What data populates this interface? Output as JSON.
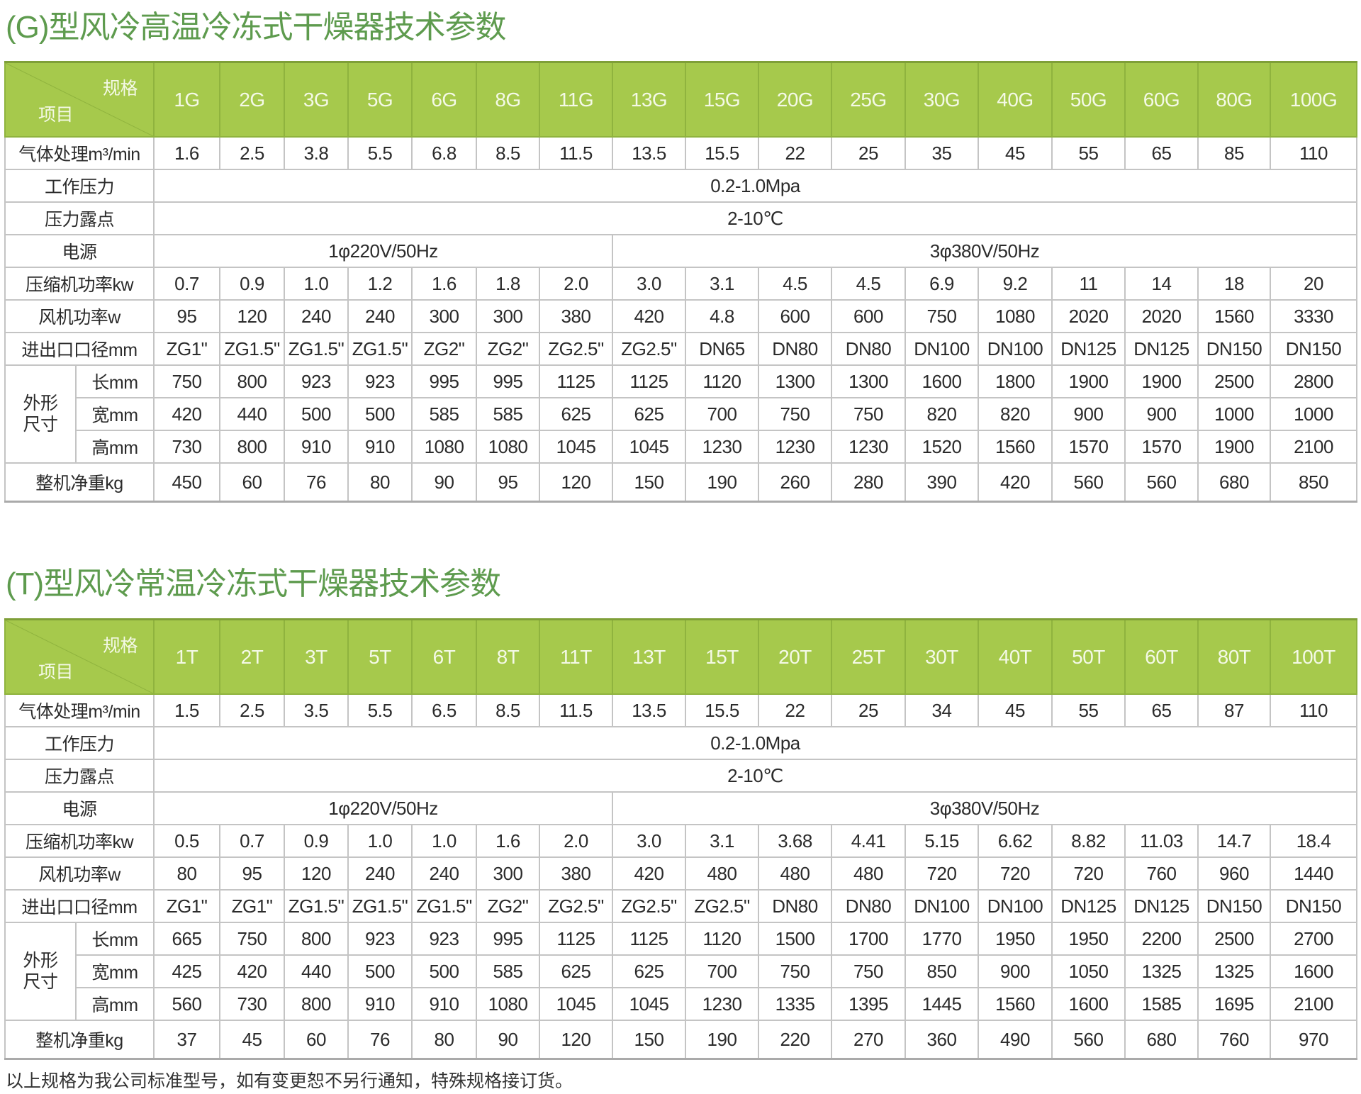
{
  "tables": [
    {
      "title": "(G)型风冷高温冷冻式干燥器技术参数",
      "corner_spec": "规格",
      "corner_item": "项目",
      "models": [
        "1G",
        "2G",
        "3G",
        "5G",
        "6G",
        "8G",
        "11G",
        "13G",
        "15G",
        "20G",
        "25G",
        "30G",
        "40G",
        "50G",
        "60G",
        "80G",
        "100G"
      ],
      "flow": {
        "label": "气体处理m³/min",
        "values": [
          "1.6",
          "2.5",
          "3.8",
          "5.5",
          "6.8",
          "8.5",
          "11.5",
          "13.5",
          "15.5",
          "22",
          "25",
          "35",
          "45",
          "55",
          "65",
          "85",
          "110"
        ]
      },
      "pressure": {
        "label": "工作压力",
        "value": "0.2-1.0Mpa"
      },
      "dewpoint": {
        "label": "压力露点",
        "value": "2-10℃"
      },
      "power": {
        "label": "电源",
        "single": "1φ220V/50Hz",
        "three": "3φ380V/50Hz"
      },
      "compressor": {
        "label": "压缩机功率kw",
        "values": [
          "0.7",
          "0.9",
          "1.0",
          "1.2",
          "1.6",
          "1.8",
          "2.0",
          "3.0",
          "3.1",
          "4.5",
          "4.5",
          "6.9",
          "9.2",
          "11",
          "14",
          "18",
          "20"
        ]
      },
      "fan": {
        "label": "风机功率w",
        "values": [
          "95",
          "120",
          "240",
          "240",
          "300",
          "300",
          "380",
          "420",
          "4.8",
          "600",
          "600",
          "750",
          "1080",
          "2020",
          "2020",
          "1560",
          "3330"
        ]
      },
      "port": {
        "label": "进出口口径mm",
        "values": [
          "ZG1\"",
          "ZG1.5\"",
          "ZG1.5\"",
          "ZG1.5\"",
          "ZG2\"",
          "ZG2\"",
          "ZG2.5\"",
          "ZG2.5\"",
          "DN65",
          "DN80",
          "DN80",
          "DN100",
          "DN100",
          "DN125",
          "DN125",
          "DN150",
          "DN150"
        ]
      },
      "dims": {
        "label": "外形尺寸",
        "length": {
          "label": "长mm",
          "values": [
            "750",
            "800",
            "923",
            "923",
            "995",
            "995",
            "1125",
            "1125",
            "1120",
            "1300",
            "1300",
            "1600",
            "1800",
            "1900",
            "1900",
            "2500",
            "2800"
          ]
        },
        "width": {
          "label": "宽mm",
          "values": [
            "420",
            "440",
            "500",
            "500",
            "585",
            "585",
            "625",
            "625",
            "700",
            "750",
            "750",
            "820",
            "820",
            "900",
            "900",
            "1000",
            "1000"
          ]
        },
        "height": {
          "label": "高mm",
          "values": [
            "730",
            "800",
            "910",
            "910",
            "1080",
            "1080",
            "1045",
            "1045",
            "1230",
            "1230",
            "1230",
            "1520",
            "1560",
            "1570",
            "1570",
            "1900",
            "2100"
          ]
        }
      },
      "weight": {
        "label": "整机净重kg",
        "values": [
          "450",
          "60",
          "76",
          "80",
          "90",
          "95",
          "120",
          "150",
          "190",
          "260",
          "280",
          "390",
          "420",
          "560",
          "560",
          "680",
          "850"
        ]
      }
    },
    {
      "title": "(T)型风冷常温冷冻式干燥器技术参数",
      "corner_spec": "规格",
      "corner_item": "项目",
      "models": [
        "1T",
        "2T",
        "3T",
        "5T",
        "6T",
        "8T",
        "11T",
        "13T",
        "15T",
        "20T",
        "25T",
        "30T",
        "40T",
        "50T",
        "60T",
        "80T",
        "100T"
      ],
      "flow": {
        "label": "气体处理m³/min",
        "values": [
          "1.5",
          "2.5",
          "3.5",
          "5.5",
          "6.5",
          "8.5",
          "11.5",
          "13.5",
          "15.5",
          "22",
          "25",
          "34",
          "45",
          "55",
          "65",
          "87",
          "110"
        ]
      },
      "pressure": {
        "label": "工作压力",
        "value": "0.2-1.0Mpa"
      },
      "dewpoint": {
        "label": "压力露点",
        "value": "2-10℃"
      },
      "power": {
        "label": "电源",
        "single": "1φ220V/50Hz",
        "three": "3φ380V/50Hz"
      },
      "compressor": {
        "label": "压缩机功率kw",
        "values": [
          "0.5",
          "0.7",
          "0.9",
          "1.0",
          "1.0",
          "1.6",
          "2.0",
          "3.0",
          "3.1",
          "3.68",
          "4.41",
          "5.15",
          "6.62",
          "8.82",
          "11.03",
          "14.7",
          "18.4"
        ]
      },
      "fan": {
        "label": "风机功率w",
        "values": [
          "80",
          "95",
          "120",
          "240",
          "240",
          "300",
          "380",
          "420",
          "480",
          "480",
          "480",
          "720",
          "720",
          "720",
          "760",
          "960",
          "1440"
        ]
      },
      "port": {
        "label": "进出口口径mm",
        "values": [
          "ZG1\"",
          "ZG1\"",
          "ZG1.5\"",
          "ZG1.5\"",
          "ZG1.5\"",
          "ZG2\"",
          "ZG2.5\"",
          "ZG2.5\"",
          "ZG2.5\"",
          "DN80",
          "DN80",
          "DN100",
          "DN100",
          "DN125",
          "DN125",
          "DN150",
          "DN150"
        ]
      },
      "dims": {
        "label": "外形尺寸",
        "length": {
          "label": "长mm",
          "values": [
            "665",
            "750",
            "800",
            "923",
            "923",
            "995",
            "1125",
            "1125",
            "1120",
            "1500",
            "1700",
            "1770",
            "1950",
            "1950",
            "2200",
            "2500",
            "2700"
          ]
        },
        "width": {
          "label": "宽mm",
          "values": [
            "425",
            "420",
            "440",
            "500",
            "500",
            "585",
            "625",
            "625",
            "700",
            "750",
            "750",
            "850",
            "900",
            "1050",
            "1325",
            "1325",
            "1600"
          ]
        },
        "height": {
          "label": "高mm",
          "values": [
            "560",
            "730",
            "800",
            "910",
            "910",
            "1080",
            "1045",
            "1045",
            "1230",
            "1335",
            "1395",
            "1445",
            "1560",
            "1600",
            "1585",
            "1695",
            "2100"
          ]
        }
      },
      "weight": {
        "label": "整机净重kg",
        "values": [
          "37",
          "45",
          "60",
          "76",
          "80",
          "90",
          "120",
          "150",
          "190",
          "220",
          "270",
          "360",
          "490",
          "560",
          "680",
          "760",
          "970"
        ]
      }
    }
  ],
  "footnote": "以上规格为我公司标准型号，如有变更恕不另行通知，特殊规格接订货。",
  "colors": {
    "header_bg": "#a6c94c",
    "title": "#5e9b4e",
    "grid": "#c4c4c4"
  }
}
